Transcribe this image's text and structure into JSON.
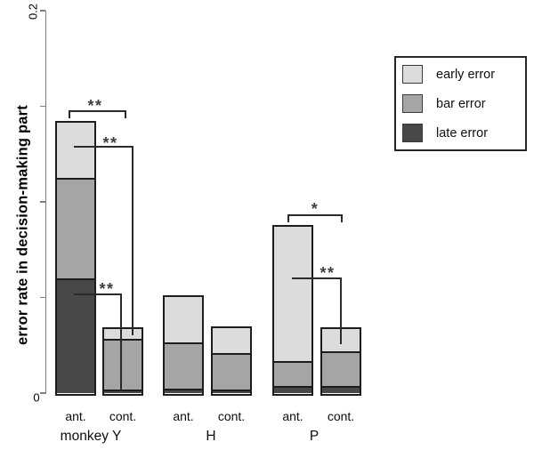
{
  "figure": {
    "background": "#ffffff"
  },
  "chart_data": {
    "type": "bar",
    "stacked": true,
    "title": "",
    "xlabel": "",
    "ylabel": "error rate in decision-making part",
    "ylim": [
      0,
      0.2
    ],
    "yticks": [
      0,
      0.05,
      0.1,
      0.15,
      0.2
    ],
    "ytick_labels": [
      "0",
      "0.2"
    ],
    "grid": false,
    "legend_position": "upper-right",
    "legend": [
      {
        "label": "early error",
        "color": "#dcdcdc"
      },
      {
        "label": "bar error",
        "color": "#a5a5a5"
      },
      {
        "label": "late error",
        "color": "#484848"
      }
    ],
    "groups": [
      {
        "label": "monkey Y",
        "bars": [
          {
            "label": "ant.",
            "values": {
              "early": 0.0288,
              "bar": 0.0526,
              "late": 0.06
            },
            "total": 0.1414
          },
          {
            "label": "cont.",
            "values": {
              "early": 0.005,
              "bar": 0.0265,
              "late": 0.002
            },
            "total": 0.0335
          }
        ]
      },
      {
        "label": "H",
        "bars": [
          {
            "label": "ant.",
            "values": {
              "early": 0.0237,
              "bar": 0.024,
              "late": 0.0025
            },
            "total": 0.0502
          },
          {
            "label": "cont.",
            "values": {
              "early": 0.013,
              "bar": 0.0191,
              "late": 0.0017
            },
            "total": 0.0338
          }
        ]
      },
      {
        "label": "P",
        "bars": [
          {
            "label": "ant.",
            "values": {
              "early": 0.0702,
              "bar": 0.0132,
              "late": 0.0036
            },
            "total": 0.087
          },
          {
            "label": "cont.",
            "values": {
              "early": 0.0116,
              "bar": 0.0183,
              "late": 0.0036
            },
            "total": 0.0335
          }
        ]
      }
    ],
    "significance": [
      {
        "label": "**",
        "comparison": "monkey Y ant. vs cont. (total)",
        "style": "bracket"
      },
      {
        "label": "**",
        "comparison": "monkey Y ant. vs cont. (early error)",
        "style": "elbow"
      },
      {
        "label": "**",
        "comparison": "monkey Y ant. vs cont. (late error)",
        "style": "elbow"
      },
      {
        "label": "*",
        "comparison": "P ant. vs cont. (total)",
        "style": "bracket"
      },
      {
        "label": "**",
        "comparison": "P ant. vs cont. (early error)",
        "style": "elbow"
      }
    ]
  }
}
